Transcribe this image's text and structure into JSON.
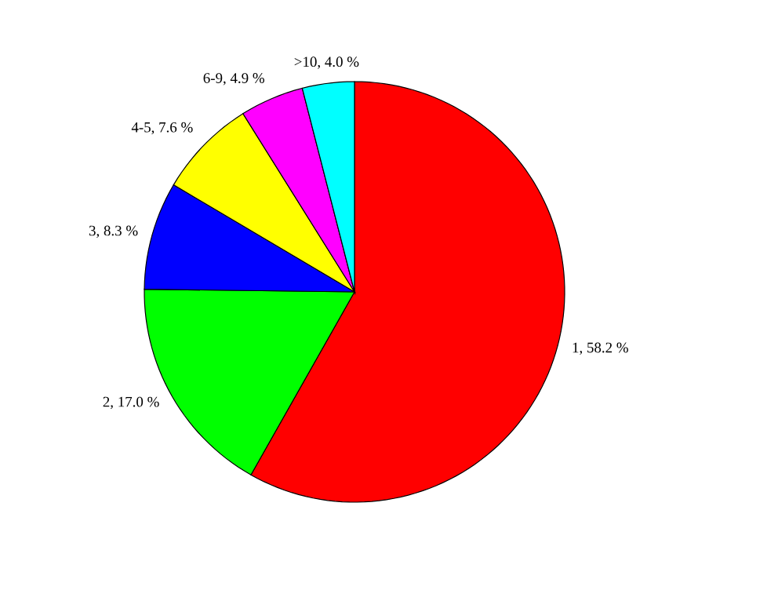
{
  "chart_data": {
    "type": "pie",
    "categories": [
      "1",
      "2",
      "3",
      "4-5",
      "6-9",
      ">10"
    ],
    "values": [
      58.2,
      17.0,
      8.3,
      7.6,
      4.9,
      4.0
    ],
    "value_labels": [
      ", 58.2 %",
      ", 17.0 %",
      ", 8.3 %",
      ", 7.6 %",
      ", 4.9 %",
      ", 4.0 %"
    ],
    "colors": [
      "#ff0000",
      "#00ff00",
      "#0000ff",
      "#ffff00",
      "#ff00ff",
      "#00ffff"
    ]
  }
}
